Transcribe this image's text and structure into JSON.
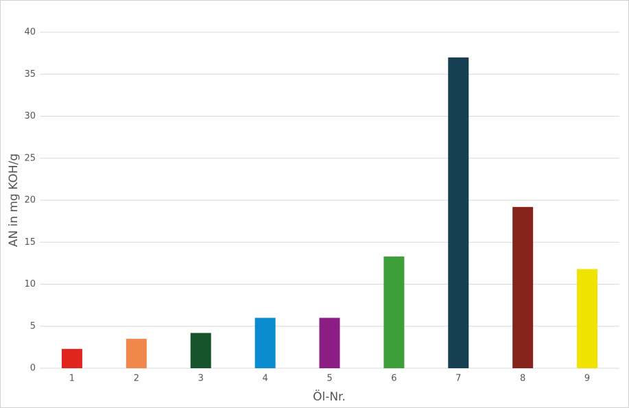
{
  "chart_data": {
    "type": "bar",
    "x_label": "Öl-Nr.",
    "y_label": "AN in mg KOH/g",
    "categories": [
      "1",
      "2",
      "3",
      "4",
      "5",
      "6",
      "7",
      "8",
      "9"
    ],
    "values": [
      2.3,
      3.5,
      4.2,
      6.0,
      6.0,
      13.3,
      37.0,
      19.2,
      11.8
    ],
    "colors": [
      "#e0251f",
      "#ef884a",
      "#17532a",
      "#0a8bd0",
      "#8b1d84",
      "#3d9e3a",
      "#173f52",
      "#86231a",
      "#f1e300"
    ],
    "ylim": [
      0,
      40
    ],
    "yticks": [
      0,
      5,
      10,
      15,
      20,
      25,
      30,
      35,
      40
    ],
    "grid": true
  }
}
